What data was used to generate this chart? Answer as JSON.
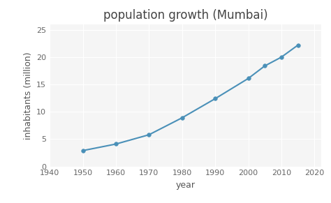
{
  "title": "population growth (Mumbai)",
  "xlabel": "year",
  "ylabel": "inhabitants (million)",
  "years": [
    1950,
    1960,
    1970,
    1980,
    1990,
    2000,
    2005,
    2010,
    2015
  ],
  "population": [
    2.9,
    4.1,
    5.8,
    8.9,
    12.4,
    16.1,
    18.4,
    20.0,
    22.2
  ],
  "line_color": "#4a90b8",
  "marker": "o",
  "marker_size": 4,
  "xlim": [
    1940,
    2022
  ],
  "ylim": [
    0,
    26
  ],
  "xticks": [
    1940,
    1950,
    1960,
    1970,
    1980,
    1990,
    2000,
    2010,
    2020
  ],
  "yticks": [
    0,
    5,
    10,
    15,
    20,
    25
  ],
  "background_color": "#ffffff",
  "plot_bg_color": "#f5f5f5",
  "grid_color": "#ffffff",
  "title_fontsize": 12,
  "label_fontsize": 9,
  "tick_fontsize": 8
}
